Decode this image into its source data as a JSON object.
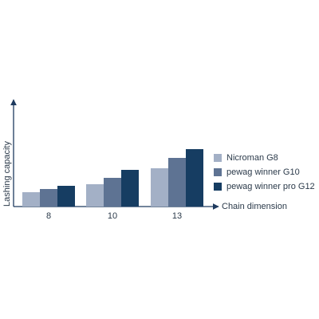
{
  "chart_data": {
    "type": "bar",
    "x_label": "Chain dimension",
    "y_label": "Lashing capacity",
    "categories": [
      "8",
      "10",
      "13"
    ],
    "series": [
      {
        "name": "Nicroman G8",
        "color": "#a3b0c6",
        "values": [
          18,
          28,
          48
        ]
      },
      {
        "name": "pewag winner G10",
        "color": "#5e7393",
        "values": [
          22,
          36,
          61
        ]
      },
      {
        "name": "pewag winner pro G12",
        "color": "#163d62",
        "values": [
          26,
          46,
          72
        ]
      }
    ],
    "ylim": [
      0,
      132
    ],
    "legend": "right"
  }
}
